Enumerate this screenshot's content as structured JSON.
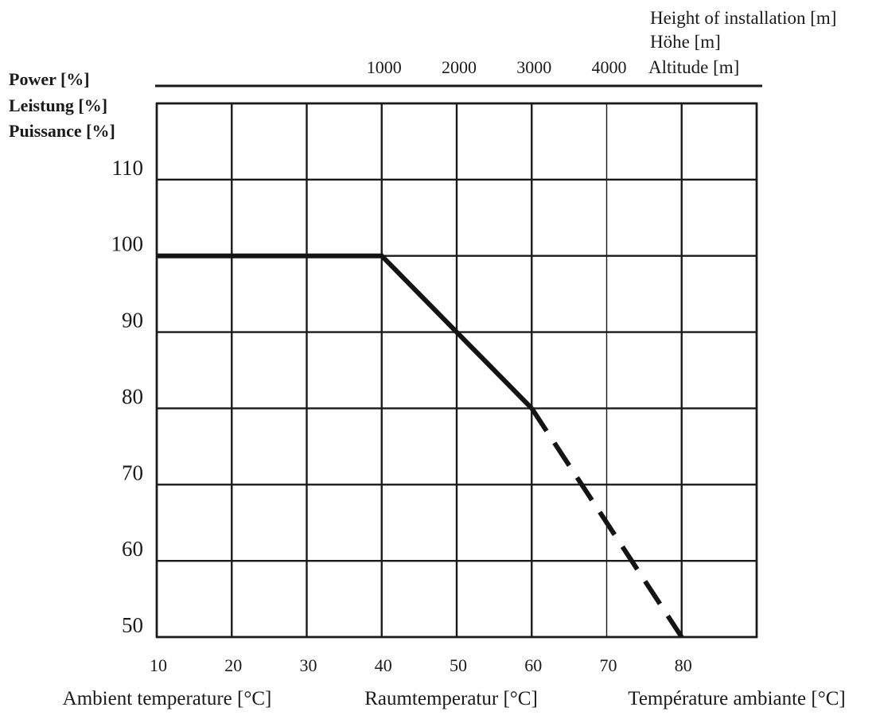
{
  "chart_data": {
    "type": "line",
    "title": "",
    "ylabel": [
      "Power [%]",
      "Leistung [%]",
      "Puissance [%]"
    ],
    "xlabel": [
      "Ambient temperature [°C]",
      "Raumtemperatur [°C]",
      "Température ambiante [°C]"
    ],
    "x_top_label": [
      "Height of installation [m]",
      "Höhe [m]",
      "Altitude [m]"
    ],
    "x_ticks": [
      "10",
      "20",
      "30",
      "40",
      "50",
      "60",
      "70",
      "80"
    ],
    "x_top_ticks": [
      "1000",
      "2000",
      "3000",
      "4000"
    ],
    "y_ticks": [
      "50",
      "60",
      "70",
      "80",
      "90",
      "100",
      "110"
    ],
    "xlim": [
      10,
      90
    ],
    "ylim": [
      50,
      120
    ],
    "grid": true,
    "series": [
      {
        "style": "solid",
        "color": "#141414",
        "x": [
          10,
          40,
          50,
          60
        ],
        "y": [
          100,
          100,
          90,
          80
        ]
      },
      {
        "style": "dashed",
        "color": "#141414",
        "x": [
          60,
          80
        ],
        "y": [
          80,
          50
        ]
      }
    ]
  }
}
